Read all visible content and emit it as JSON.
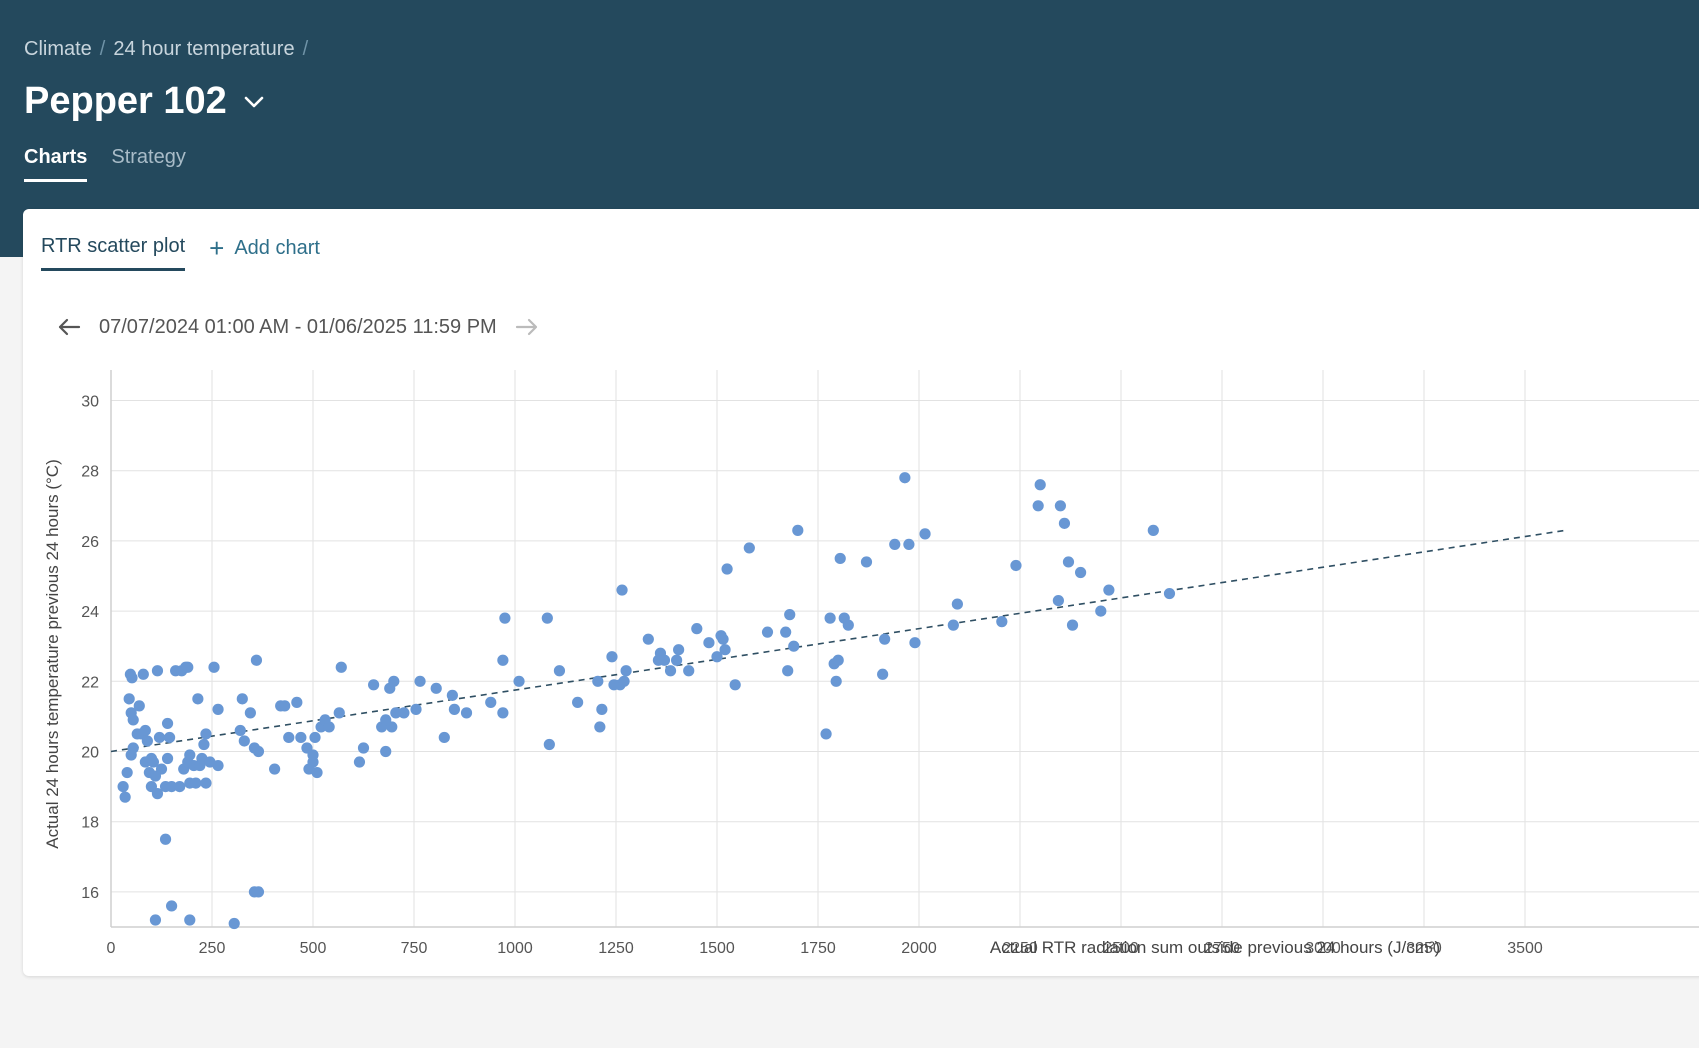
{
  "breadcrumb": {
    "items": [
      "Climate",
      "24 hour temperature"
    ],
    "sep": "/"
  },
  "page": {
    "title": "Pepper 102"
  },
  "tabs": [
    "Charts",
    "Strategy"
  ],
  "chart_tabs": {
    "active": "RTR scatter plot",
    "add": "Add chart"
  },
  "date_range": "07/07/2024 01:00 AM - 01/06/2025 11:59 PM",
  "colors": {
    "header": "#24495d",
    "point": "#6897d4",
    "trendline": "#2f4f63"
  },
  "chart_data": {
    "type": "scatter",
    "xlabel": "Actual RTR radiation sum outside previous 24 hours (J/cm²)",
    "ylabel": "Actual 24 hours temperature previous 24 hours (°C)",
    "xlim": [
      0,
      3600
    ],
    "ylim": [
      15,
      30
    ],
    "xticks": [
      0,
      250,
      500,
      750,
      1000,
      1250,
      1500,
      1750,
      2000,
      2250,
      2500,
      2750,
      3000,
      3250,
      3500
    ],
    "yticks": [
      16,
      18,
      20,
      22,
      24,
      26,
      28,
      30
    ],
    "grid": true,
    "trendline": {
      "x": [
        0,
        3600
      ],
      "y": [
        20.0,
        26.3
      ],
      "style": "dashed"
    },
    "points": [
      [
        30,
        19.0
      ],
      [
        35,
        18.7
      ],
      [
        40,
        19.4
      ],
      [
        45,
        21.5
      ],
      [
        48,
        22.2
      ],
      [
        50,
        21.1
      ],
      [
        52,
        22.1
      ],
      [
        55,
        20.9
      ],
      [
        50,
        19.9
      ],
      [
        55,
        20.1
      ],
      [
        65,
        20.5
      ],
      [
        70,
        21.3
      ],
      [
        75,
        20.5
      ],
      [
        80,
        22.2
      ],
      [
        85,
        20.6
      ],
      [
        90,
        20.3
      ],
      [
        85,
        19.7
      ],
      [
        95,
        19.4
      ],
      [
        100,
        19.8
      ],
      [
        100,
        19.0
      ],
      [
        105,
        19.7
      ],
      [
        110,
        19.3
      ],
      [
        115,
        18.8
      ],
      [
        115,
        22.3
      ],
      [
        120,
        20.4
      ],
      [
        125,
        19.5
      ],
      [
        135,
        17.5
      ],
      [
        135,
        19.0
      ],
      [
        140,
        19.8
      ],
      [
        140,
        20.8
      ],
      [
        145,
        20.4
      ],
      [
        150,
        19.0
      ],
      [
        160,
        22.3
      ],
      [
        170,
        19.0
      ],
      [
        175,
        22.3
      ],
      [
        180,
        19.5
      ],
      [
        185,
        22.4
      ],
      [
        190,
        19.7
      ],
      [
        190,
        22.4
      ],
      [
        195,
        19.9
      ],
      [
        195,
        19.1
      ],
      [
        205,
        19.6
      ],
      [
        210,
        19.1
      ],
      [
        215,
        21.5
      ],
      [
        220,
        19.6
      ],
      [
        225,
        19.8
      ],
      [
        230,
        20.2
      ],
      [
        235,
        19.1
      ],
      [
        235,
        20.5
      ],
      [
        245,
        19.7
      ],
      [
        255,
        22.4
      ],
      [
        265,
        21.2
      ],
      [
        265,
        19.6
      ],
      [
        320,
        20.6
      ],
      [
        325,
        21.5
      ],
      [
        330,
        20.3
      ],
      [
        345,
        21.1
      ],
      [
        355,
        20.1
      ],
      [
        360,
        22.6
      ],
      [
        365,
        20.0
      ],
      [
        405,
        19.5
      ],
      [
        420,
        21.3
      ],
      [
        430,
        21.3
      ],
      [
        440,
        20.4
      ],
      [
        460,
        21.4
      ],
      [
        470,
        20.4
      ],
      [
        485,
        20.1
      ],
      [
        490,
        19.5
      ],
      [
        500,
        19.7
      ],
      [
        500,
        19.9
      ],
      [
        505,
        20.4
      ],
      [
        510,
        19.4
      ],
      [
        520,
        20.7
      ],
      [
        530,
        20.9
      ],
      [
        540,
        20.7
      ],
      [
        565,
        21.1
      ],
      [
        570,
        22.4
      ],
      [
        615,
        19.7
      ],
      [
        625,
        20.1
      ],
      [
        650,
        21.9
      ],
      [
        670,
        20.7
      ],
      [
        680,
        20.9
      ],
      [
        680,
        20.0
      ],
      [
        690,
        21.8
      ],
      [
        695,
        20.7
      ],
      [
        700,
        22.0
      ],
      [
        705,
        21.1
      ],
      [
        725,
        21.1
      ],
      [
        755,
        21.2
      ],
      [
        765,
        22.0
      ],
      [
        805,
        21.8
      ],
      [
        825,
        20.4
      ],
      [
        845,
        21.6
      ],
      [
        850,
        21.2
      ],
      [
        880,
        21.1
      ],
      [
        940,
        21.4
      ],
      [
        970,
        21.1
      ],
      [
        970,
        22.6
      ],
      [
        975,
        23.8
      ],
      [
        1010,
        22.0
      ],
      [
        1080,
        23.8
      ],
      [
        1085,
        20.2
      ],
      [
        1110,
        22.3
      ],
      [
        1155,
        21.4
      ],
      [
        1205,
        22.0
      ],
      [
        1210,
        20.7
      ],
      [
        1215,
        21.2
      ],
      [
        1240,
        22.7
      ],
      [
        1245,
        21.9
      ],
      [
        1260,
        21.9
      ],
      [
        1265,
        24.6
      ],
      [
        1270,
        22.0
      ],
      [
        1275,
        22.3
      ],
      [
        1330,
        23.2
      ],
      [
        1355,
        22.6
      ],
      [
        1360,
        22.8
      ],
      [
        1370,
        22.6
      ],
      [
        1385,
        22.3
      ],
      [
        1400,
        22.6
      ],
      [
        1405,
        22.9
      ],
      [
        1430,
        22.3
      ],
      [
        1450,
        23.5
      ],
      [
        1480,
        23.1
      ],
      [
        1500,
        22.7
      ],
      [
        1510,
        23.3
      ],
      [
        1515,
        23.2
      ],
      [
        1520,
        22.9
      ],
      [
        1525,
        25.2
      ],
      [
        1545,
        21.9
      ],
      [
        1580,
        25.8
      ],
      [
        1625,
        23.4
      ],
      [
        1670,
        23.4
      ],
      [
        1675,
        22.3
      ],
      [
        1680,
        23.9
      ],
      [
        1690,
        23.0
      ],
      [
        1700,
        26.3
      ],
      [
        1770,
        20.5
      ],
      [
        1780,
        23.8
      ],
      [
        1790,
        22.5
      ],
      [
        1795,
        22.0
      ],
      [
        1800,
        22.6
      ],
      [
        1805,
        25.5
      ],
      [
        1815,
        23.8
      ],
      [
        1825,
        23.6
      ],
      [
        1870,
        25.4
      ],
      [
        1910,
        22.2
      ],
      [
        1915,
        23.2
      ],
      [
        1940,
        25.9
      ],
      [
        1965,
        27.8
      ],
      [
        1975,
        25.9
      ],
      [
        1990,
        23.1
      ],
      [
        2015,
        26.2
      ],
      [
        2085,
        23.6
      ],
      [
        2095,
        24.2
      ],
      [
        2205,
        23.7
      ],
      [
        2240,
        25.3
      ],
      [
        2295,
        27.0
      ],
      [
        2300,
        27.6
      ],
      [
        2345,
        24.3
      ],
      [
        2350,
        27.0
      ],
      [
        2360,
        26.5
      ],
      [
        2370,
        25.4
      ],
      [
        2380,
        23.6
      ],
      [
        2400,
        25.1
      ],
      [
        2450,
        24.0
      ],
      [
        2470,
        24.6
      ],
      [
        2580,
        26.3
      ],
      [
        2620,
        24.5
      ],
      [
        110,
        15.2
      ],
      [
        150,
        15.6
      ],
      [
        195,
        15.2
      ],
      [
        305,
        15.1
      ],
      [
        355,
        16.0
      ],
      [
        365,
        16.0
      ]
    ]
  }
}
